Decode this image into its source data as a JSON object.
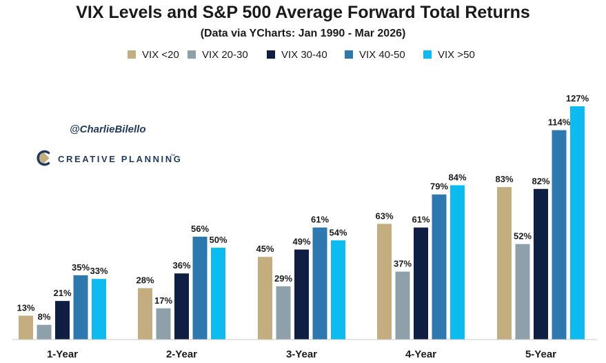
{
  "chart_data": {
    "type": "bar",
    "title": "VIX Levels and S&P 500 Average Forward Total Returns",
    "subtitle": "(Data via YCharts: Jan 1990 - Mar 2026)",
    "categories": [
      "1-Year",
      "2-Year",
      "3-Year",
      "4-Year",
      "5-Year"
    ],
    "series": [
      {
        "name": "VIX <20",
        "color": "#c4ad7e",
        "values": [
          13,
          28,
          45,
          63,
          83
        ]
      },
      {
        "name": "VIX 20-30",
        "color": "#8ea1aa",
        "values": [
          8,
          17,
          29,
          37,
          52
        ]
      },
      {
        "name": "VIX 30-40",
        "color": "#0f1f43",
        "values": [
          21,
          36,
          49,
          61,
          82
        ]
      },
      {
        "name": "VIX 40-50",
        "color": "#2e78b0",
        "values": [
          35,
          56,
          61,
          79,
          114
        ]
      },
      {
        "name": "VIX >50",
        "color": "#0cbcf0",
        "values": [
          33,
          50,
          54,
          84,
          127
        ]
      }
    ],
    "value_suffix": "%",
    "ylim": [
      0,
      127
    ],
    "legend_position": "top",
    "grid": false
  },
  "watermark": {
    "handle": "@CharlieBilello",
    "brand": "CREATIVE PLANNING",
    "brand_mark": "™"
  }
}
